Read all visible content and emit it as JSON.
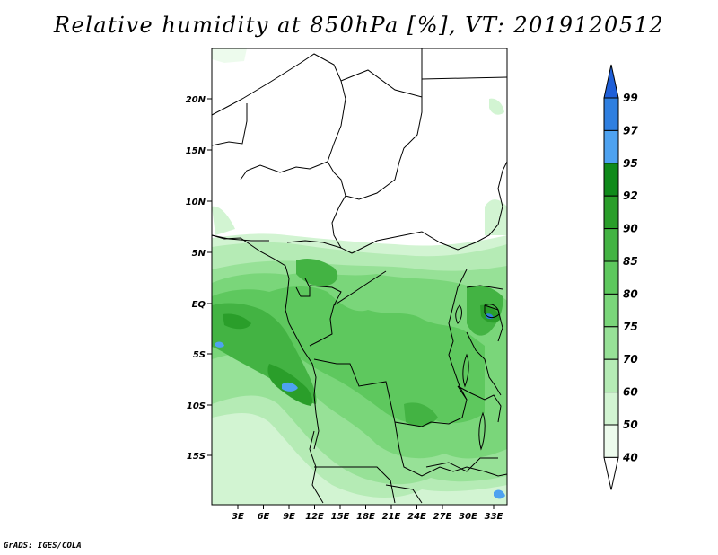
{
  "title": "Relative humidity at 850hPa [%], VT: 2019120512",
  "credit": "GrADS: IGES/COLA",
  "map": {
    "x_ticks": [
      "3E",
      "6E",
      "9E",
      "12E",
      "15E",
      "18E",
      "21E",
      "24E",
      "27E",
      "30E",
      "33E"
    ],
    "y_ticks": [
      "20N",
      "15N",
      "10N",
      "5N",
      "EQ",
      "5S",
      "10S",
      "15S"
    ]
  },
  "colorbar": {
    "labels": [
      "99",
      "97",
      "95",
      "92",
      "90",
      "85",
      "80",
      "75",
      "70",
      "60",
      "50",
      "40"
    ],
    "colors": [
      "#1f5fd8",
      "#2f7fe0",
      "#4ea2f0",
      "#0f8a1a",
      "#2a9e2a",
      "#43b343",
      "#5ec85e",
      "#7ad67a",
      "#97e197",
      "#b5ebb5",
      "#d2f4d2",
      "#edfbed"
    ]
  }
}
